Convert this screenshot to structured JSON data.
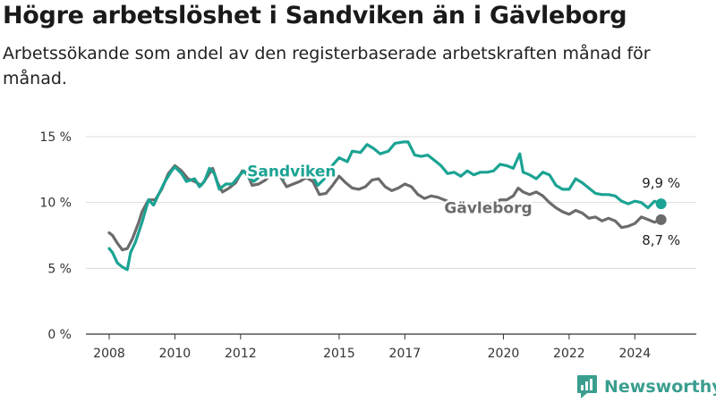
{
  "header": {
    "title": "Högre arbetslöshet i Sandviken än i Gävleborg",
    "subtitle": "Arbetssökande som andel av den registerbaserade arbetskraften månad för månad."
  },
  "logo": {
    "text": "Newsworthy",
    "icon": "bar-chart-icon"
  },
  "chart_data": {
    "type": "line",
    "title": "Högre arbetslöshet i Sandviken än i Gävleborg",
    "subtitle": "Arbetssökande som andel av den registerbaserade arbetskraften månad för månad.",
    "xlabel": "",
    "ylabel": "",
    "xlim": [
      2008.0,
      2025.0
    ],
    "ylim": [
      0,
      15
    ],
    "grid": true,
    "legend": "inline labels",
    "x_ticks": [
      {
        "value": 2008,
        "label": "2008"
      },
      {
        "value": 2010,
        "label": "2010"
      },
      {
        "value": 2012,
        "label": "2012"
      },
      {
        "value": 2015,
        "label": "2015"
      },
      {
        "value": 2017,
        "label": "2017"
      },
      {
        "value": 2020,
        "label": "2020"
      },
      {
        "value": 2022,
        "label": "2022"
      },
      {
        "value": 2024,
        "label": "2024"
      }
    ],
    "y_ticks": [
      {
        "value": 0,
        "label": "0 %"
      },
      {
        "value": 5,
        "label": "5 %"
      },
      {
        "value": 10,
        "label": "10 %"
      },
      {
        "value": 15,
        "label": "15 %"
      }
    ],
    "series": [
      {
        "name": "Sandviken",
        "color": "#1ba393",
        "end_label": "9,9 %",
        "points": [
          [
            2008.0,
            6.5
          ],
          [
            2008.1,
            6.2
          ],
          [
            2008.25,
            5.4
          ],
          [
            2008.4,
            5.1
          ],
          [
            2008.55,
            4.9
          ],
          [
            2008.65,
            6.2
          ],
          [
            2008.8,
            7.0
          ],
          [
            2009.0,
            8.5
          ],
          [
            2009.2,
            10.2
          ],
          [
            2009.35,
            9.8
          ],
          [
            2009.5,
            10.6
          ],
          [
            2009.7,
            11.6
          ],
          [
            2009.9,
            12.4
          ],
          [
            2010.0,
            12.7
          ],
          [
            2010.2,
            12.2
          ],
          [
            2010.35,
            11.6
          ],
          [
            2010.6,
            11.8
          ],
          [
            2010.75,
            11.2
          ],
          [
            2010.9,
            11.6
          ],
          [
            2011.05,
            12.6
          ],
          [
            2011.2,
            12.2
          ],
          [
            2011.35,
            11.0
          ],
          [
            2011.55,
            11.4
          ],
          [
            2011.75,
            11.4
          ],
          [
            2011.95,
            12.0
          ],
          [
            2012.1,
            12.4
          ],
          [
            2012.25,
            11.9
          ],
          [
            2012.4,
            11.6
          ],
          [
            2012.55,
            11.9
          ],
          [
            2012.75,
            12.2
          ],
          [
            2012.9,
            12.5
          ],
          [
            2013.05,
            12.4
          ],
          [
            2013.2,
            12.2
          ],
          [
            2013.3,
            11.8
          ],
          [
            2013.5,
            12.4
          ],
          [
            2013.7,
            12.0
          ],
          [
            2013.9,
            12.5
          ],
          [
            2014.1,
            12.4
          ],
          [
            2014.35,
            11.3
          ],
          [
            2014.55,
            11.8
          ],
          [
            2014.75,
            12.7
          ],
          [
            2015.0,
            13.4
          ],
          [
            2015.25,
            13.1
          ],
          [
            2015.4,
            13.9
          ],
          [
            2015.65,
            13.8
          ],
          [
            2015.85,
            14.4
          ],
          [
            2016.05,
            14.1
          ],
          [
            2016.25,
            13.7
          ],
          [
            2016.5,
            13.9
          ],
          [
            2016.7,
            14.5
          ],
          [
            2016.95,
            14.6
          ],
          [
            2017.1,
            14.6
          ],
          [
            2017.3,
            13.6
          ],
          [
            2017.5,
            13.5
          ],
          [
            2017.7,
            13.6
          ],
          [
            2017.9,
            13.2
          ],
          [
            2018.1,
            12.8
          ],
          [
            2018.3,
            12.2
          ],
          [
            2018.5,
            12.3
          ],
          [
            2018.7,
            12.0
          ],
          [
            2018.9,
            12.4
          ],
          [
            2019.1,
            12.1
          ],
          [
            2019.3,
            12.3
          ],
          [
            2019.5,
            12.3
          ],
          [
            2019.7,
            12.4
          ],
          [
            2019.9,
            12.9
          ],
          [
            2020.1,
            12.8
          ],
          [
            2020.3,
            12.6
          ],
          [
            2020.5,
            13.7
          ],
          [
            2020.6,
            12.3
          ],
          [
            2020.8,
            12.1
          ],
          [
            2021.0,
            11.8
          ],
          [
            2021.2,
            12.3
          ],
          [
            2021.4,
            12.1
          ],
          [
            2021.6,
            11.3
          ],
          [
            2021.8,
            11.0
          ],
          [
            2022.0,
            11.0
          ],
          [
            2022.2,
            11.8
          ],
          [
            2022.4,
            11.5
          ],
          [
            2022.6,
            11.1
          ],
          [
            2022.8,
            10.7
          ],
          [
            2023.0,
            10.6
          ],
          [
            2023.2,
            10.6
          ],
          [
            2023.4,
            10.5
          ],
          [
            2023.6,
            10.1
          ],
          [
            2023.8,
            9.9
          ],
          [
            2024.0,
            10.1
          ],
          [
            2024.2,
            10.0
          ],
          [
            2024.4,
            9.6
          ],
          [
            2024.6,
            10.1
          ],
          [
            2024.8,
            9.9
          ]
        ]
      },
      {
        "name": "Gävleborg",
        "color": "#6b6b6b",
        "end_label": "8,7 %",
        "points": [
          [
            2008.0,
            7.7
          ],
          [
            2008.1,
            7.5
          ],
          [
            2008.25,
            6.9
          ],
          [
            2008.4,
            6.4
          ],
          [
            2008.55,
            6.5
          ],
          [
            2008.7,
            7.2
          ],
          [
            2008.9,
            8.5
          ],
          [
            2009.0,
            9.3
          ],
          [
            2009.2,
            10.2
          ],
          [
            2009.4,
            10.2
          ],
          [
            2009.6,
            11.0
          ],
          [
            2009.8,
            12.2
          ],
          [
            2010.0,
            12.8
          ],
          [
            2010.2,
            12.4
          ],
          [
            2010.4,
            11.8
          ],
          [
            2010.6,
            11.6
          ],
          [
            2010.8,
            11.3
          ],
          [
            2011.0,
            12.0
          ],
          [
            2011.15,
            12.6
          ],
          [
            2011.3,
            11.5
          ],
          [
            2011.45,
            10.8
          ],
          [
            2011.65,
            11.1
          ],
          [
            2011.85,
            11.5
          ],
          [
            2012.05,
            12.4
          ],
          [
            2012.2,
            12.2
          ],
          [
            2012.35,
            11.3
          ],
          [
            2012.55,
            11.4
          ],
          [
            2012.75,
            11.7
          ],
          [
            2012.95,
            12.2
          ],
          [
            2013.1,
            12.4
          ],
          [
            2013.2,
            12.0
          ],
          [
            2013.4,
            11.2
          ],
          [
            2013.6,
            11.4
          ],
          [
            2013.8,
            11.6
          ],
          [
            2014.0,
            11.9
          ],
          [
            2014.2,
            11.6
          ],
          [
            2014.4,
            10.6
          ],
          [
            2014.6,
            10.7
          ],
          [
            2014.8,
            11.3
          ],
          [
            2015.0,
            12.0
          ],
          [
            2015.2,
            11.5
          ],
          [
            2015.4,
            11.1
          ],
          [
            2015.6,
            11.0
          ],
          [
            2015.8,
            11.2
          ],
          [
            2016.0,
            11.7
          ],
          [
            2016.2,
            11.8
          ],
          [
            2016.4,
            11.2
          ],
          [
            2016.6,
            10.9
          ],
          [
            2016.8,
            11.1
          ],
          [
            2017.0,
            11.4
          ],
          [
            2017.2,
            11.2
          ],
          [
            2017.4,
            10.6
          ],
          [
            2017.6,
            10.3
          ],
          [
            2017.8,
            10.5
          ],
          [
            2018.0,
            10.4
          ],
          [
            2018.3,
            10.1
          ],
          [
            2018.5,
            9.9
          ],
          [
            2018.7,
            9.7
          ],
          [
            2018.9,
            9.9
          ],
          [
            2019.1,
            9.6
          ],
          [
            2019.3,
            9.7
          ],
          [
            2019.5,
            9.8
          ],
          [
            2019.7,
            9.9
          ],
          [
            2019.9,
            10.2
          ],
          [
            2020.1,
            10.2
          ],
          [
            2020.3,
            10.5
          ],
          [
            2020.45,
            11.1
          ],
          [
            2020.6,
            10.8
          ],
          [
            2020.8,
            10.6
          ],
          [
            2021.0,
            10.8
          ],
          [
            2021.2,
            10.5
          ],
          [
            2021.4,
            10.0
          ],
          [
            2021.6,
            9.6
          ],
          [
            2021.8,
            9.3
          ],
          [
            2022.0,
            9.1
          ],
          [
            2022.2,
            9.4
          ],
          [
            2022.4,
            9.2
          ],
          [
            2022.6,
            8.8
          ],
          [
            2022.8,
            8.9
          ],
          [
            2023.0,
            8.6
          ],
          [
            2023.2,
            8.8
          ],
          [
            2023.4,
            8.6
          ],
          [
            2023.6,
            8.1
          ],
          [
            2023.8,
            8.2
          ],
          [
            2024.0,
            8.4
          ],
          [
            2024.2,
            8.9
          ],
          [
            2024.4,
            8.7
          ],
          [
            2024.6,
            8.5
          ],
          [
            2024.8,
            8.7
          ]
        ]
      }
    ]
  }
}
